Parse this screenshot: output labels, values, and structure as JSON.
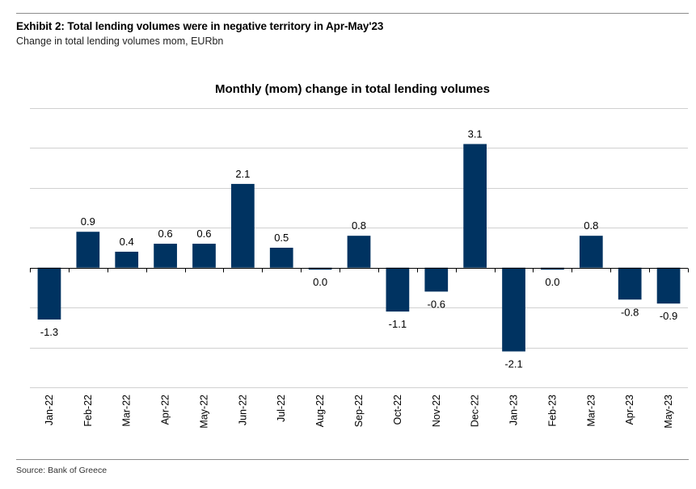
{
  "header": {
    "title": "Exhibit 2: Total lending volumes were in negative territory in Apr-May'23",
    "subtitle": "Change in total lending volumes mom, EURbn"
  },
  "footer": {
    "source": "Source: Bank of Greece"
  },
  "colors": {
    "bar": "#003361",
    "grid": "#d0d0d0",
    "axis": "#000000",
    "text": "#000000"
  },
  "chart_data": {
    "type": "bar",
    "title": "Monthly (mom) change in total lending volumes",
    "xlabel": "",
    "ylabel": "",
    "categories": [
      "Jan-22",
      "Feb-22",
      "Mar-22",
      "Apr-22",
      "May-22",
      "Jun-22",
      "Jul-22",
      "Aug-22",
      "Sep-22",
      "Oct-22",
      "Nov-22",
      "Dec-22",
      "Jan-23",
      "Feb-23",
      "Mar-23",
      "Apr-23",
      "May-23"
    ],
    "values": [
      -1.3,
      0.9,
      0.4,
      0.6,
      0.6,
      2.1,
      0.5,
      -0.05,
      0.8,
      -1.1,
      -0.6,
      3.1,
      -2.1,
      -0.05,
      0.8,
      -0.8,
      -0.9
    ],
    "data_labels": [
      "-1.3",
      "0.9",
      "0.4",
      "0.6",
      "0.6",
      "2.1",
      "0.5",
      "0.0",
      "0.8",
      "-1.1",
      "-0.6",
      "3.1",
      "-2.1",
      "0.0",
      "0.8",
      "-0.8",
      "-0.9"
    ],
    "ylim": [
      -3,
      4
    ],
    "grid": true,
    "legend": "none"
  }
}
